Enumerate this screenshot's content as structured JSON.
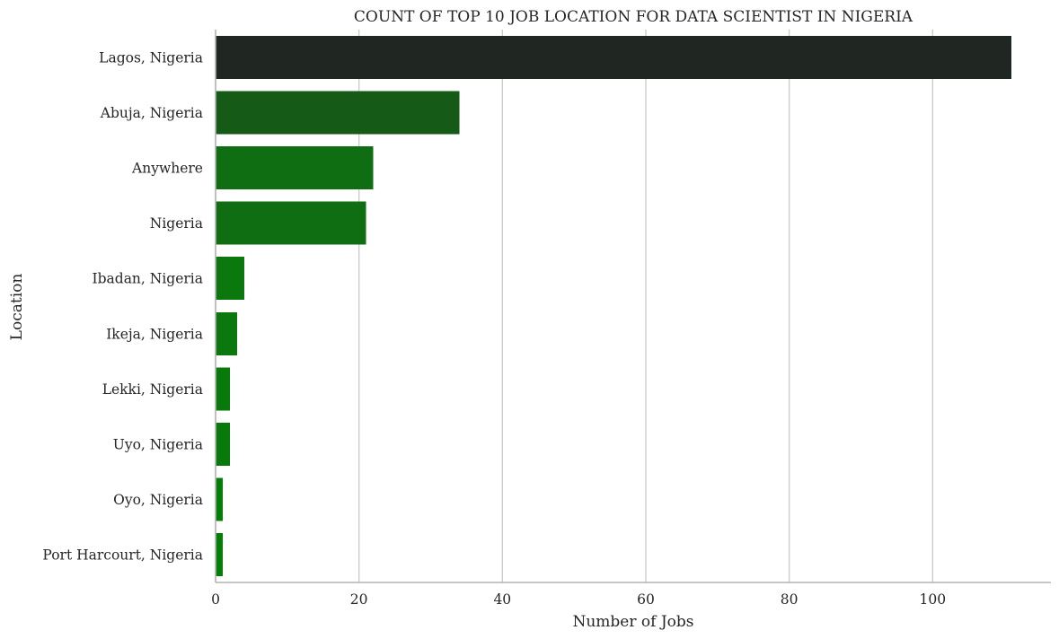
{
  "chart_data": {
    "type": "bar",
    "orientation": "horizontal",
    "title": "COUNT OF TOP 10 JOB LOCATION FOR DATA SCIENTIST IN NIGERIA",
    "xlabel": "Number of Jobs",
    "ylabel": "Location",
    "categories": [
      "Lagos, Nigeria",
      "Abuja, Nigeria",
      "Anywhere",
      "Nigeria",
      "Ibadan, Nigeria",
      "Ikeja, Nigeria",
      "Lekki, Nigeria",
      "Uyo, Nigeria",
      "Oyo, Nigeria",
      "Port Harcourt, Nigeria"
    ],
    "values": [
      111,
      34,
      22,
      21,
      4,
      3,
      2,
      2,
      1,
      1
    ],
    "colors": [
      "#202622",
      "#155a17",
      "#0f6e12",
      "#0f6e12",
      "#0b780d",
      "#0b780d",
      "#087a0a",
      "#087a0a",
      "#047f05",
      "#047f05"
    ],
    "xlim": [
      0,
      116.5
    ],
    "xticks": [
      0,
      20,
      40,
      60,
      80,
      100
    ],
    "grid": "vertical",
    "legend": "none"
  }
}
